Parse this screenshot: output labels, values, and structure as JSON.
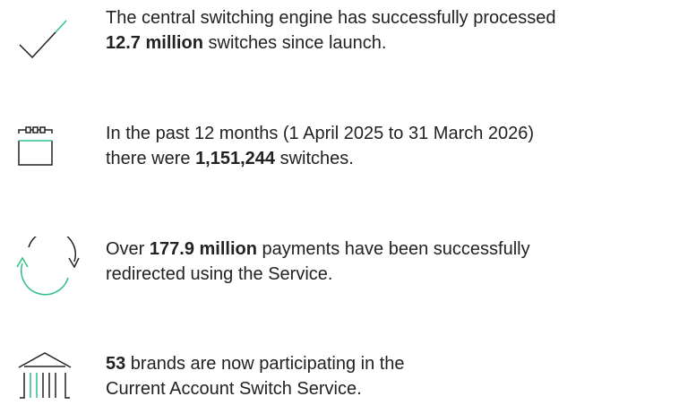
{
  "items": [
    {
      "icon": "check",
      "lines": [
        [
          {
            "text": "The central switching engine has successfully processed"
          }
        ],
        [
          {
            "strong": "12.7 million"
          },
          {
            "text": " switches since launch."
          }
        ]
      ]
    },
    {
      "icon": "calendar",
      "lines": [
        [
          {
            "text": "In the past 12 months (1 April 2025 to 31 March 2026)"
          }
        ],
        [
          {
            "text": "there were "
          },
          {
            "strong": "1,151,244"
          },
          {
            "text": " switches."
          }
        ]
      ]
    },
    {
      "icon": "redirect",
      "lines": [
        [
          {
            "text": "Over "
          },
          {
            "strong": "177.9 million"
          },
          {
            "text": " payments have been successfully"
          }
        ],
        [
          {
            "text": "redirected using the Service."
          }
        ]
      ]
    },
    {
      "icon": "bank",
      "lines": [
        [
          {
            "strong": "53"
          },
          {
            "text": " brands are now participating in the"
          }
        ],
        [
          {
            "text": "Current Account Switch Service."
          }
        ]
      ]
    }
  ]
}
